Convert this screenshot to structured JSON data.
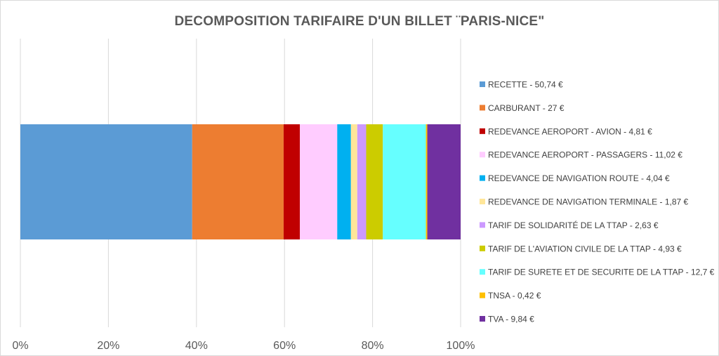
{
  "chart_data": {
    "type": "bar",
    "orientation": "horizontal",
    "stacked": "percent",
    "title": "DECOMPOSITION TARIFAIRE D'UN BILLET ¨PARIS-NICE\"",
    "xlabel": "",
    "ylabel": "",
    "xlim": [
      0,
      100
    ],
    "x_ticks": [
      "0%",
      "20%",
      "40%",
      "60%",
      "80%",
      "100%"
    ],
    "grid": "vertical",
    "legend_position": "right",
    "series": [
      {
        "name": "RECETTE - 50,74 €",
        "value": 50.74,
        "color": "#5B9BD5"
      },
      {
        "name": "CARBURANT - 27 €",
        "value": 27,
        "color": "#ED7D31"
      },
      {
        "name": "REDEVANCE AEROPORT - AVION - 4,81 €",
        "value": 4.81,
        "color": "#C00000"
      },
      {
        "name": "REDEVANCE AEROPORT - PASSAGERS - 11,02 €",
        "value": 11.02,
        "color": "#FFCCFF"
      },
      {
        "name": "REDEVANCE DE NAVIGATION ROUTE - 4,04 €",
        "value": 4.04,
        "color": "#00B0F0"
      },
      {
        "name": "REDEVANCE DE NAVIGATION TERMINALE - 1,87 €",
        "value": 1.87,
        "color": "#FFE699"
      },
      {
        "name": "TARIF DE SOLIDARITÉ  DE LA TTAP - 2,63 €",
        "value": 2.63,
        "color": "#CC99FF"
      },
      {
        "name": "TARIF DE L'AVIATION CIVILE DE LA TTAP - 4,93 €",
        "value": 4.93,
        "color": "#CCCC00"
      },
      {
        "name": "TARIF DE SURETE ET DE SECURITE DE LA TTAP  - 12,7 €",
        "value": 12.7,
        "color": "#66FFFF"
      },
      {
        "name": "TNSA  - 0,42 €",
        "value": 0.42,
        "color": "#FFC000"
      },
      {
        "name": "TVA  - 9,84 €",
        "value": 9.84,
        "color": "#7030A0"
      }
    ]
  }
}
